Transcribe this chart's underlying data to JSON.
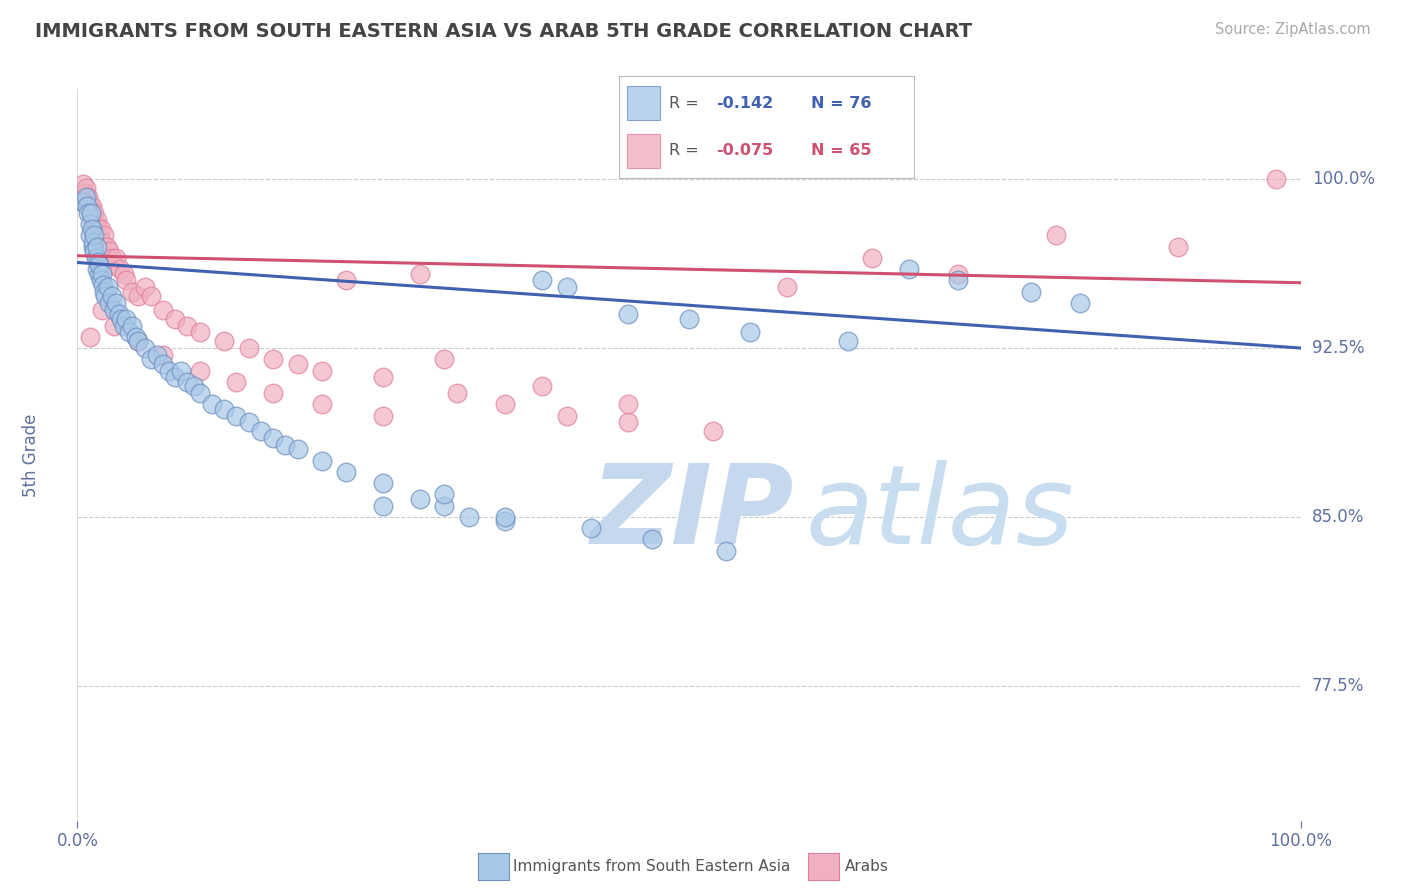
{
  "title": "IMMIGRANTS FROM SOUTH EASTERN ASIA VS ARAB 5TH GRADE CORRELATION CHART",
  "source": "Source: ZipAtlas.com",
  "ylabel": "5th Grade",
  "x_tick_labels": [
    "0.0%",
    "100.0%"
  ],
  "y_tick_labels": [
    "77.5%",
    "85.0%",
    "92.5%",
    "100.0%"
  ],
  "y_tick_values": [
    0.775,
    0.85,
    0.925,
    1.0
  ],
  "xlim": [
    0.0,
    1.0
  ],
  "ylim": [
    0.715,
    1.04
  ],
  "color_blue": "#a8c8e8",
  "color_pink": "#f0b0c0",
  "color_blue_edge": "#7090c0",
  "color_pink_edge": "#e080a0",
  "color_blue_line": "#4060b0",
  "color_pink_line": "#d05070",
  "color_tick_label": "#6070a0",
  "color_source": "#909090",
  "background_color": "#ffffff",
  "grid_color": "#cccccc",
  "blue_trend_x": [
    0.0,
    1.0
  ],
  "blue_trend_y": [
    0.963,
    0.925
  ],
  "pink_trend_x": [
    0.0,
    1.0
  ],
  "pink_trend_y": [
    0.966,
    0.954
  ],
  "blue_scatter_x": [
    0.005,
    0.007,
    0.008,
    0.009,
    0.01,
    0.01,
    0.011,
    0.012,
    0.013,
    0.013,
    0.014,
    0.014,
    0.015,
    0.016,
    0.016,
    0.017,
    0.018,
    0.018,
    0.019,
    0.02,
    0.021,
    0.022,
    0.023,
    0.025,
    0.026,
    0.028,
    0.03,
    0.032,
    0.034,
    0.036,
    0.038,
    0.04,
    0.042,
    0.045,
    0.048,
    0.05,
    0.055,
    0.06,
    0.065,
    0.07,
    0.075,
    0.08,
    0.085,
    0.09,
    0.095,
    0.1,
    0.11,
    0.12,
    0.13,
    0.14,
    0.15,
    0.16,
    0.17,
    0.18,
    0.2,
    0.22,
    0.25,
    0.28,
    0.3,
    0.32,
    0.35,
    0.38,
    0.4,
    0.45,
    0.5,
    0.55,
    0.63,
    0.68,
    0.72,
    0.78,
    0.82,
    0.3,
    0.25,
    0.35,
    0.42,
    0.47,
    0.53
  ],
  "blue_scatter_y": [
    0.99,
    0.992,
    0.988,
    0.985,
    0.98,
    0.975,
    0.985,
    0.978,
    0.97,
    0.972,
    0.968,
    0.975,
    0.965,
    0.97,
    0.96,
    0.963,
    0.958,
    0.962,
    0.955,
    0.958,
    0.953,
    0.95,
    0.948,
    0.952,
    0.945,
    0.948,
    0.942,
    0.945,
    0.94,
    0.938,
    0.935,
    0.938,
    0.932,
    0.935,
    0.93,
    0.928,
    0.925,
    0.92,
    0.922,
    0.918,
    0.915,
    0.912,
    0.915,
    0.91,
    0.908,
    0.905,
    0.9,
    0.898,
    0.895,
    0.892,
    0.888,
    0.885,
    0.882,
    0.88,
    0.875,
    0.87,
    0.865,
    0.858,
    0.855,
    0.85,
    0.848,
    0.955,
    0.952,
    0.94,
    0.938,
    0.932,
    0.928,
    0.96,
    0.955,
    0.95,
    0.945,
    0.86,
    0.855,
    0.85,
    0.845,
    0.84,
    0.835
  ],
  "pink_scatter_x": [
    0.005,
    0.006,
    0.007,
    0.008,
    0.009,
    0.01,
    0.011,
    0.012,
    0.013,
    0.014,
    0.015,
    0.016,
    0.017,
    0.018,
    0.019,
    0.02,
    0.022,
    0.024,
    0.026,
    0.028,
    0.03,
    0.032,
    0.035,
    0.038,
    0.04,
    0.045,
    0.05,
    0.055,
    0.06,
    0.07,
    0.08,
    0.09,
    0.1,
    0.12,
    0.14,
    0.16,
    0.18,
    0.2,
    0.22,
    0.25,
    0.28,
    0.31,
    0.35,
    0.4,
    0.45,
    0.52,
    0.58,
    0.65,
    0.72,
    0.8,
    0.9,
    0.98,
    0.01,
    0.02,
    0.03,
    0.05,
    0.07,
    0.1,
    0.13,
    0.16,
    0.2,
    0.25,
    0.3,
    0.38,
    0.45
  ],
  "pink_scatter_y": [
    0.998,
    0.994,
    0.996,
    0.99,
    0.992,
    0.988,
    0.985,
    0.988,
    0.982,
    0.985,
    0.98,
    0.982,
    0.978,
    0.975,
    0.978,
    0.972,
    0.975,
    0.97,
    0.968,
    0.965,
    0.962,
    0.965,
    0.96,
    0.958,
    0.955,
    0.95,
    0.948,
    0.952,
    0.948,
    0.942,
    0.938,
    0.935,
    0.932,
    0.928,
    0.925,
    0.92,
    0.918,
    0.915,
    0.955,
    0.912,
    0.958,
    0.905,
    0.9,
    0.895,
    0.892,
    0.888,
    0.952,
    0.965,
    0.958,
    0.975,
    0.97,
    1.0,
    0.93,
    0.942,
    0.935,
    0.928,
    0.922,
    0.915,
    0.91,
    0.905,
    0.9,
    0.895,
    0.92,
    0.908,
    0.9
  ]
}
